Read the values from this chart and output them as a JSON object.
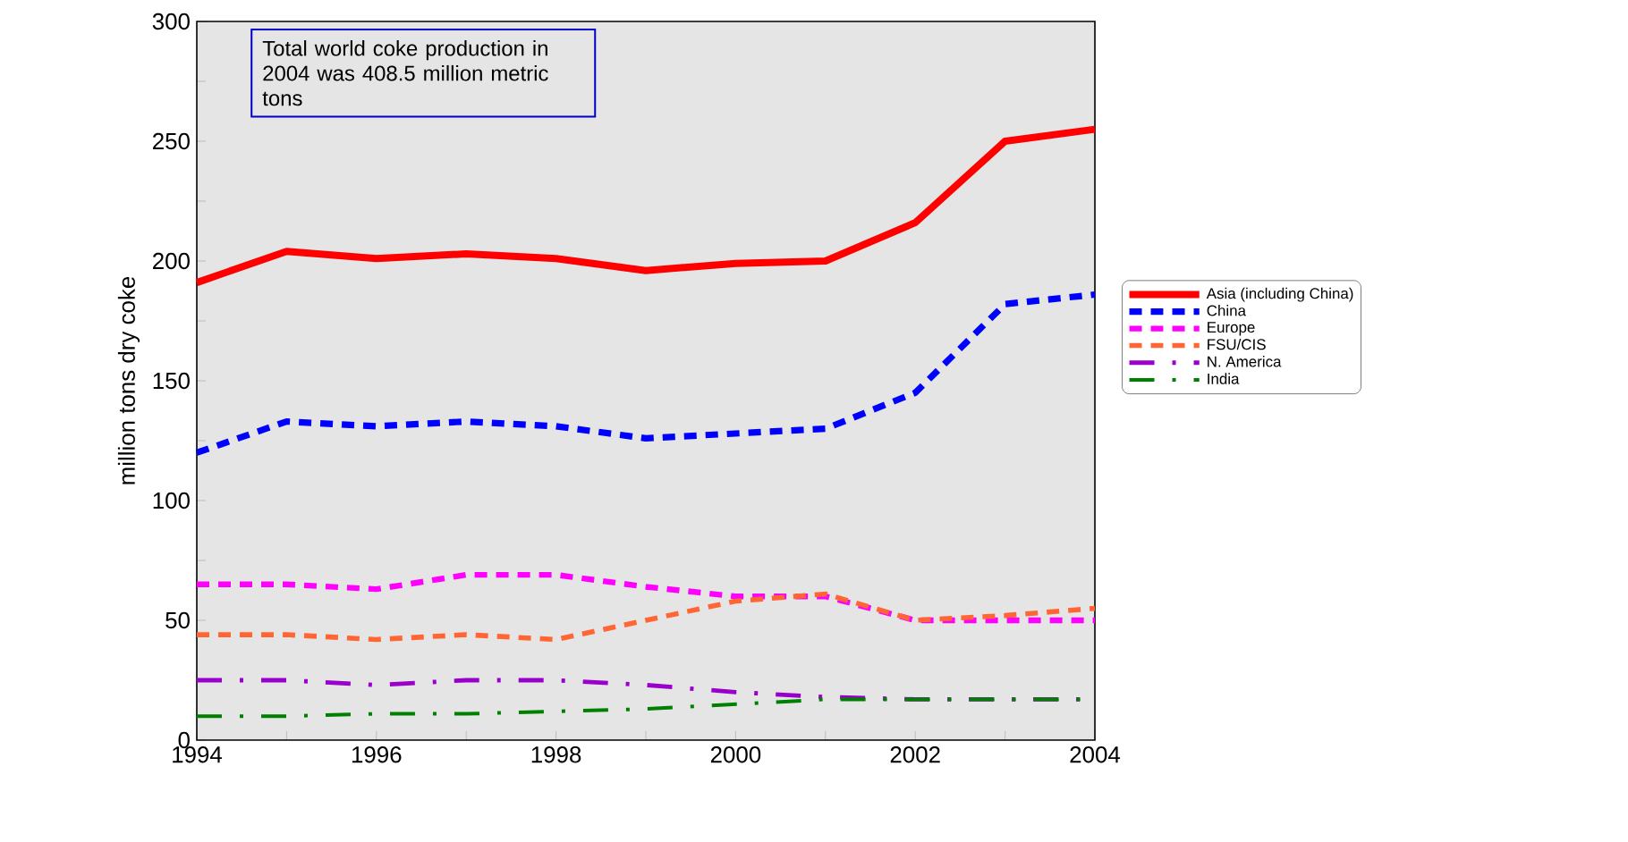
{
  "chart_data": {
    "type": "line",
    "ylabel": "million tons dry coke",
    "x": [
      1994,
      1995,
      1996,
      1997,
      1998,
      1999,
      2000,
      2001,
      2002,
      2003,
      2004
    ],
    "series": [
      {
        "name": "Asia (including China)",
        "color": "#ff0000",
        "line_style": "solid",
        "values": [
          191,
          204,
          201,
          203,
          201,
          196,
          199,
          200,
          216,
          250,
          255
        ]
      },
      {
        "name": "China",
        "color": "#0000ff",
        "line_style": "dashed",
        "values": [
          120,
          133,
          131,
          133,
          131,
          126,
          128,
          130,
          145,
          182,
          186
        ]
      },
      {
        "name": "Europe",
        "color": "#ff00ff",
        "line_style": "dashed",
        "values": [
          65,
          65,
          63,
          69,
          69,
          64,
          60,
          60,
          50,
          50,
          50
        ]
      },
      {
        "name": "FSU/CIS",
        "color": "#ff6633",
        "line_style": "dashed",
        "values": [
          44,
          44,
          42,
          44,
          42,
          50,
          58,
          61,
          50,
          52,
          55
        ]
      },
      {
        "name": "N. America",
        "color": "#9900cc",
        "line_style": "dashdot",
        "values": [
          25,
          25,
          23,
          25,
          25,
          23,
          20,
          18,
          17,
          17,
          17
        ]
      },
      {
        "name": "India",
        "color": "#008000",
        "line_style": "dashdot",
        "values": [
          10,
          10,
          11,
          11,
          12,
          13,
          15,
          17,
          17,
          17,
          17
        ]
      }
    ],
    "xlim": [
      1994,
      2004
    ],
    "xticks": [
      1994,
      {
        "value": 1995,
        "label": null
      },
      1996,
      {
        "value": 1997,
        "label": null
      },
      1998,
      {
        "value": 1999,
        "label": null
      },
      2000,
      {
        "value": 2001,
        "label": null
      },
      2002,
      {
        "value": 2003,
        "label": null
      },
      2004
    ],
    "ylim": [
      0,
      300
    ],
    "yticks": [
      0,
      {
        "value": 25,
        "label": null
      },
      50,
      {
        "value": 75,
        "label": null
      },
      100,
      {
        "value": 125,
        "label": null
      },
      150,
      {
        "value": 175,
        "label": null
      },
      200,
      {
        "value": 225,
        "label": null
      },
      250,
      {
        "value": 275,
        "label": null
      },
      300
    ],
    "grid": false,
    "legend": "right",
    "marker": "none",
    "annotations": [
      "Total world coke production in 2004 was 408.5 million metric tons"
    ]
  }
}
